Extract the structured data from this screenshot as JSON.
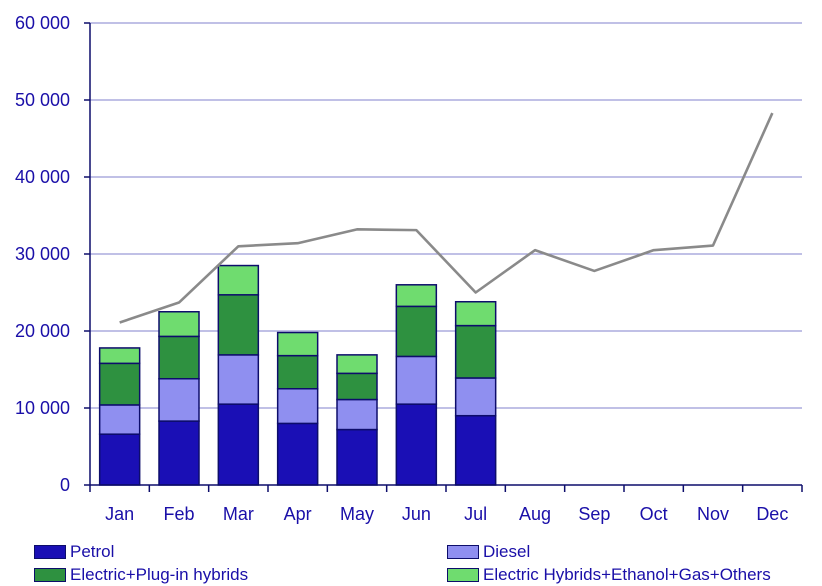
{
  "chart_data": {
    "type": "bar",
    "stacked": true,
    "categories": [
      "Jan",
      "Feb",
      "Mar",
      "Apr",
      "May",
      "Jun",
      "Jul",
      "Aug",
      "Sep",
      "Oct",
      "Nov",
      "Dec"
    ],
    "series": [
      {
        "name": "Petrol",
        "color": "#1a0fb5",
        "values": [
          6600,
          8300,
          10500,
          8000,
          7200,
          10500,
          9000,
          null,
          null,
          null,
          null,
          null
        ]
      },
      {
        "name": "Diesel",
        "color": "#8f8ff0",
        "values": [
          3800,
          5500,
          6400,
          4500,
          3900,
          6200,
          4900,
          null,
          null,
          null,
          null,
          null
        ]
      },
      {
        "name": "Electric+Plug-in hybrids",
        "color": "#2e9140",
        "values": [
          5400,
          5500,
          7800,
          4300,
          3400,
          6500,
          6800,
          null,
          null,
          null,
          null,
          null
        ]
      },
      {
        "name": "Electric Hybrids+Ethanol+Gas+Others",
        "color": "#6fdc6f",
        "values": [
          2000,
          3200,
          3800,
          3000,
          2400,
          2800,
          3100,
          null,
          null,
          null,
          null,
          null
        ]
      }
    ],
    "line": {
      "color": "#8a8a8a",
      "values": [
        21100,
        23700,
        31000,
        31400,
        33200,
        33100,
        25000,
        30500,
        27800,
        30500,
        31100,
        48300
      ]
    },
    "y_ticks": [
      "0",
      "10 000",
      "20 000",
      "30 000",
      "40 000",
      "50 000",
      "60 000"
    ],
    "ylim": [
      0,
      60000
    ],
    "grid": true,
    "legend_position": "bottom",
    "colors": {
      "axis": "#0d0d6b",
      "grid": "#9a9ad8",
      "text": "#1a0fa8"
    }
  }
}
